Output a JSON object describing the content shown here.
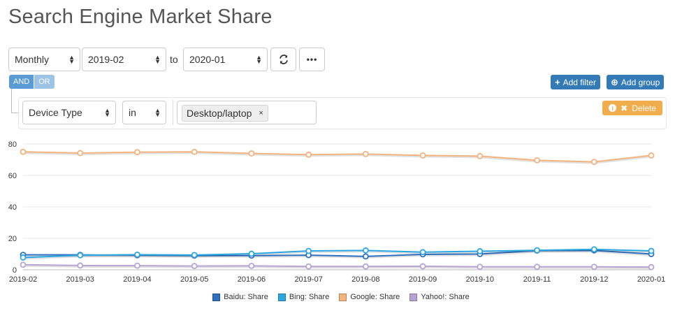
{
  "title": "Search Engine Market Share",
  "controls": {
    "interval": "Monthly",
    "from": "2019-02",
    "to_label": "to",
    "to": "2020-01",
    "refresh_icon": "refresh-icon",
    "more_icon": "ellipsis-icon"
  },
  "filter": {
    "and_label": "AND",
    "or_label": "OR",
    "add_filter_label": "Add filter",
    "add_group_label": "Add group",
    "field": "Device Type",
    "operator": "in",
    "value_tag": "Desktop/laptop",
    "tag_remove": "×",
    "delete_label": "Delete"
  },
  "colors": {
    "baidu": "#2f6fbf",
    "bing": "#2aa6e0",
    "google": "#f4b27c",
    "yahoo": "#b7a3d3",
    "add_buttons": "#337ab7",
    "delete_button": "#f0ad4e"
  },
  "chart_data": {
    "type": "line",
    "x": [
      "2019-02",
      "2019-03",
      "2019-04",
      "2019-05",
      "2019-06",
      "2019-07",
      "2019-08",
      "2019-09",
      "2019-10",
      "2019-11",
      "2019-12",
      "2020-01"
    ],
    "yticks": [
      0,
      20,
      40,
      60,
      80
    ],
    "ylim": [
      0,
      80
    ],
    "grid": true,
    "legend_position": "bottom",
    "series": [
      {
        "name": "Baidu: Share",
        "color": "#2f6fbf",
        "values": [
          9.5,
          9.5,
          9.2,
          9.0,
          9.0,
          9.3,
          8.5,
          9.8,
          10.0,
          12.2,
          12.3,
          10.0
        ]
      },
      {
        "name": "Bing: Share",
        "color": "#2aa6e0",
        "values": [
          7.8,
          9.2,
          9.6,
          9.4,
          10.2,
          12.0,
          12.3,
          11.2,
          11.8,
          12.4,
          13.0,
          12.0
        ]
      },
      {
        "name": "Google: Share",
        "color": "#f4b27c",
        "values": [
          75.0,
          74.2,
          74.8,
          75.0,
          74.0,
          73.2,
          73.6,
          72.7,
          72.3,
          69.6,
          68.6,
          72.7
        ]
      },
      {
        "name": "Yahoo!: Share",
        "color": "#b7a3d3",
        "values": [
          3.2,
          2.7,
          2.6,
          2.4,
          2.5,
          2.1,
          2.1,
          2.2,
          1.9,
          1.9,
          1.9,
          1.7
        ]
      }
    ]
  }
}
